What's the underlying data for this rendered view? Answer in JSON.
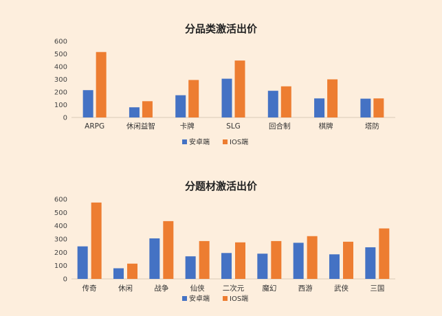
{
  "colors": {
    "background": "#fdeedd",
    "android": "#4472c4",
    "ios": "#ed7d31",
    "axis": "#d9c9b8"
  },
  "chart_data": [
    {
      "type": "bar",
      "title": "分品类激活出价",
      "categories": [
        "ARPG",
        "休闲益智",
        "卡牌",
        "SLG",
        "回合制",
        "棋牌",
        "塔防"
      ],
      "series": [
        {
          "name": "安卓端",
          "values": [
            215,
            80,
            175,
            305,
            210,
            150,
            148
          ]
        },
        {
          "name": "IOS端",
          "values": [
            515,
            128,
            295,
            448,
            245,
            300,
            150
          ]
        }
      ],
      "ylim": [
        0,
        600
      ],
      "yticks": [
        0,
        100,
        200,
        300,
        400,
        500,
        600
      ],
      "grid": false,
      "legend": "bottom"
    },
    {
      "type": "bar",
      "title": "分题材激活出价",
      "categories": [
        "传奇",
        "休闲",
        "战争",
        "仙侠",
        "二次元",
        "魔幻",
        "西游",
        "武侠",
        "三国"
      ],
      "series": [
        {
          "name": "安卓端",
          "values": [
            245,
            80,
            305,
            170,
            195,
            190,
            272,
            185,
            238
          ]
        },
        {
          "name": "IOS端",
          "values": [
            575,
            115,
            435,
            285,
            275,
            285,
            322,
            280,
            380
          ]
        }
      ],
      "ylim": [
        0,
        600
      ],
      "yticks": [
        0,
        100,
        200,
        300,
        400,
        500,
        600
      ],
      "grid": false,
      "legend": "bottom"
    }
  ]
}
